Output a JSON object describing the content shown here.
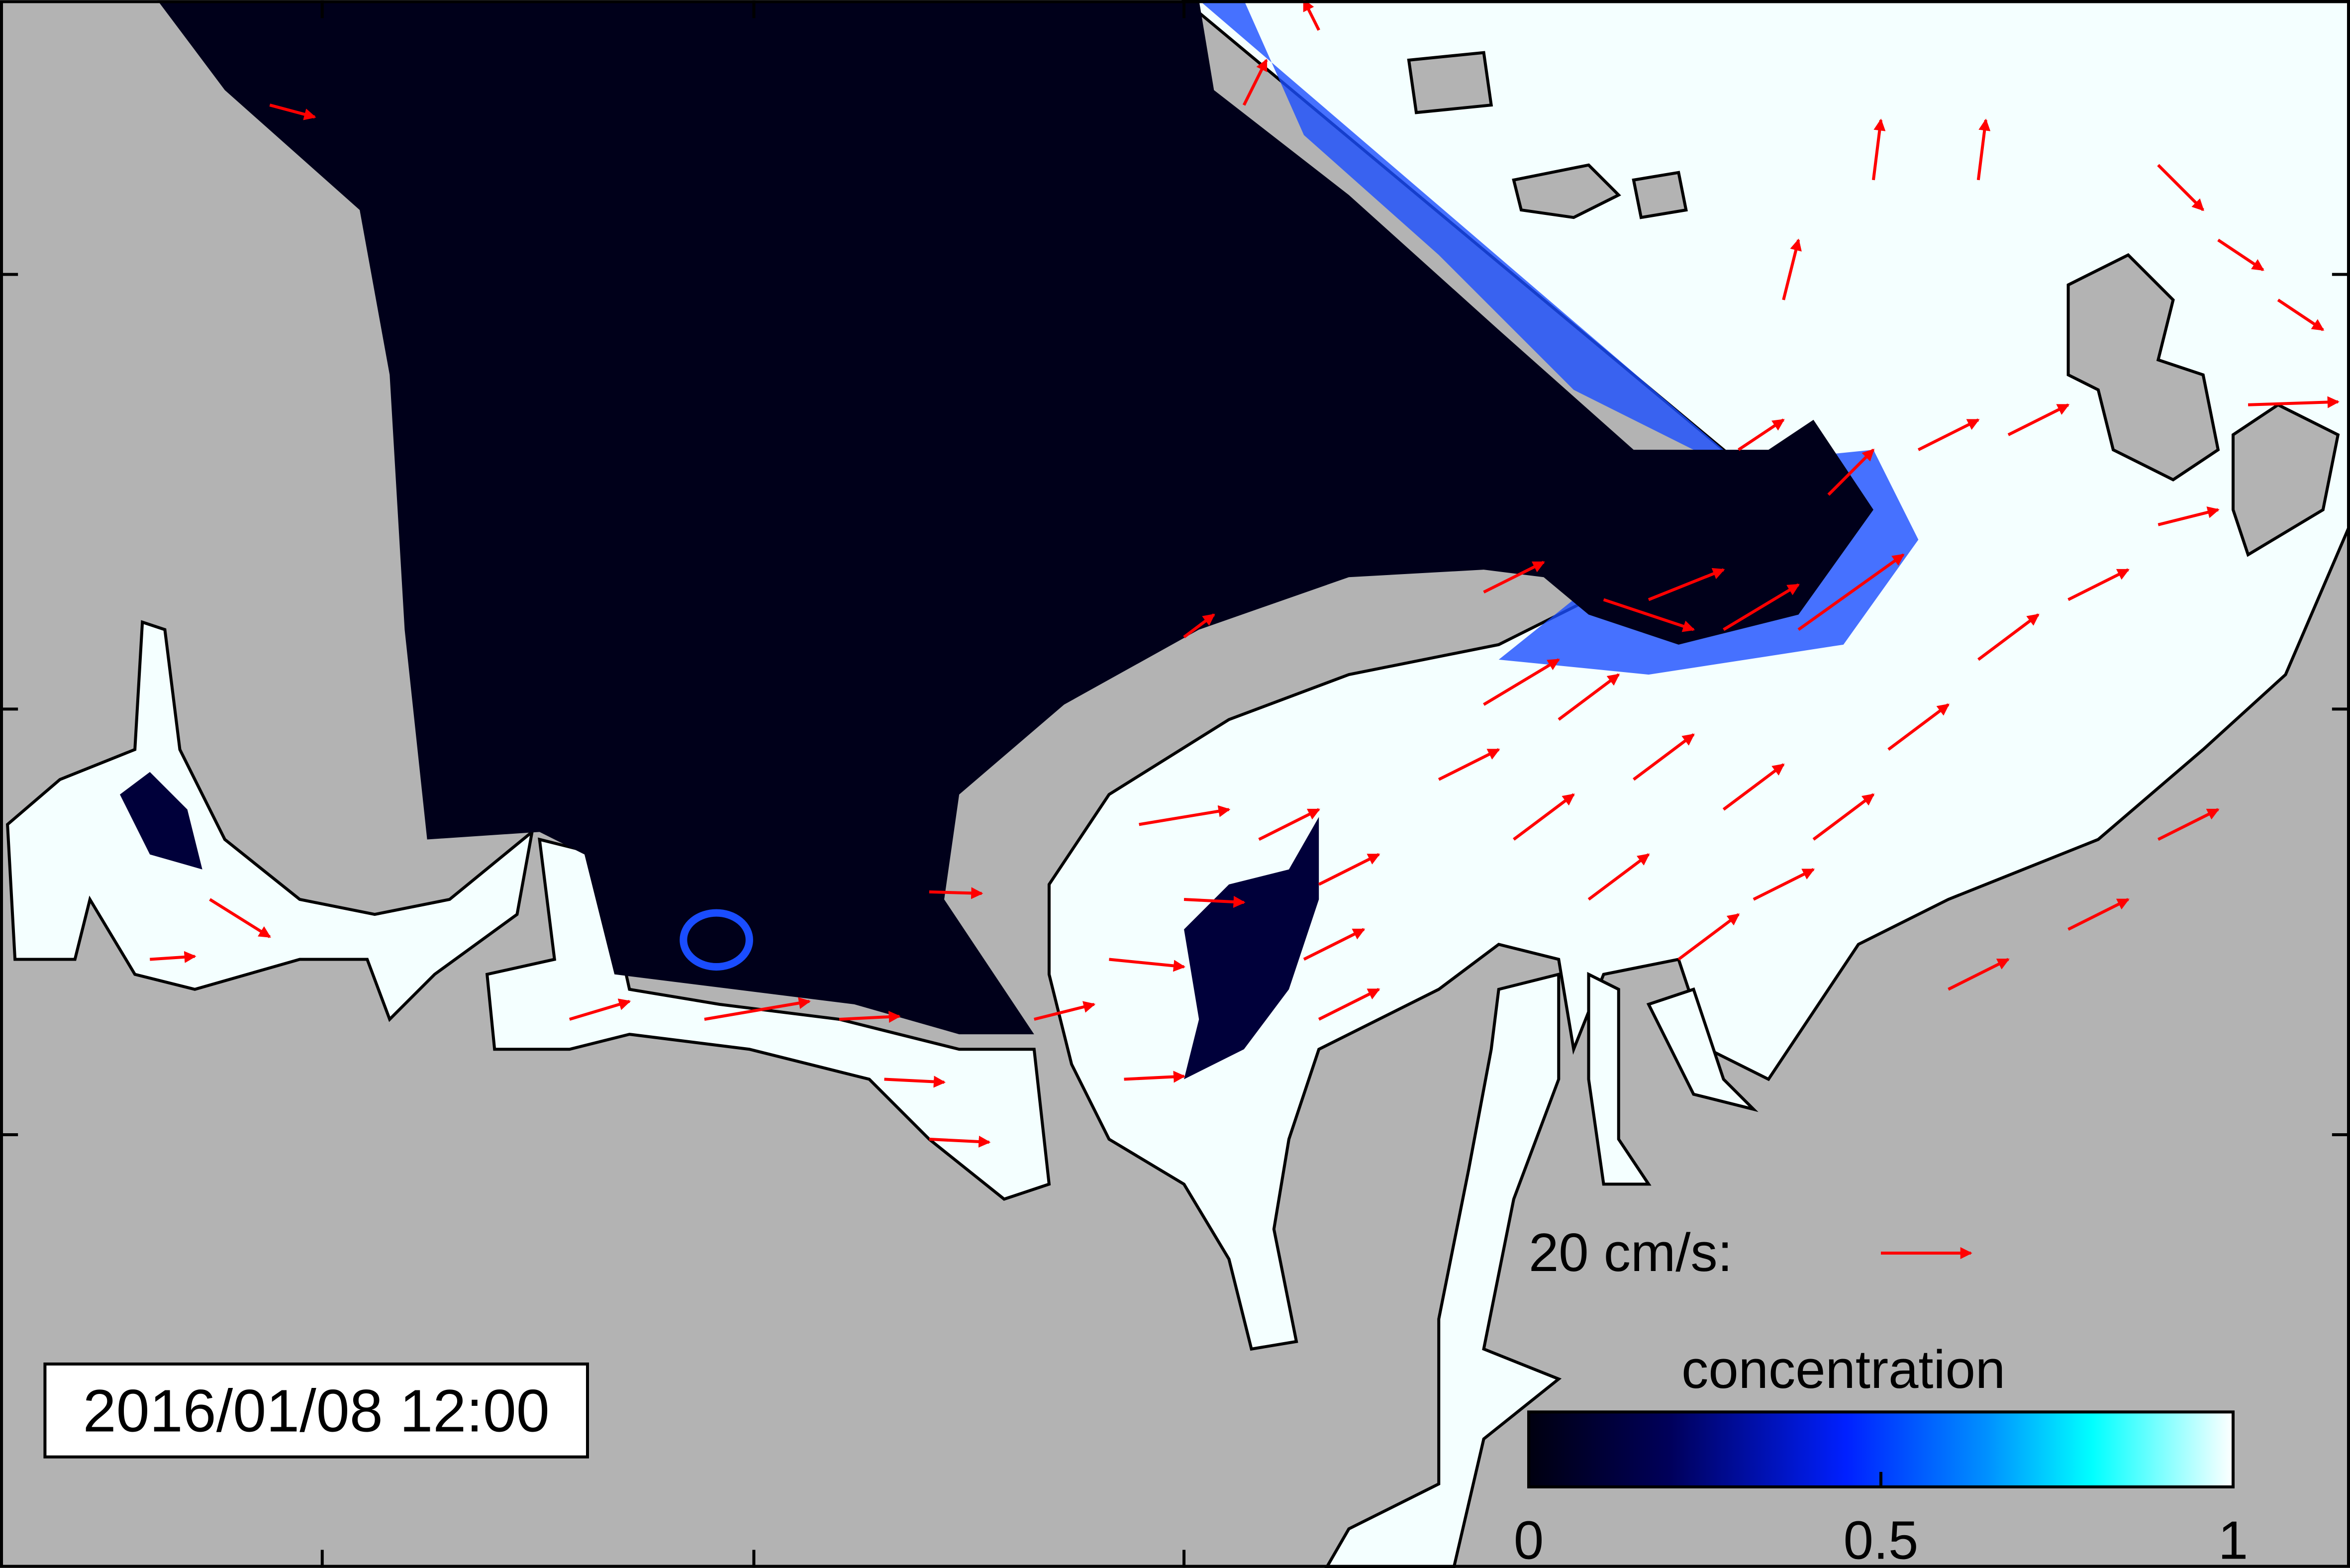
{
  "timestamp": "2016/01/08 12:00",
  "vector_scale": {
    "label": "20 cm/s:"
  },
  "colorbar": {
    "title": "concentration",
    "range": [
      0,
      1
    ],
    "ticks": [
      0,
      0.5,
      1
    ]
  }
}
